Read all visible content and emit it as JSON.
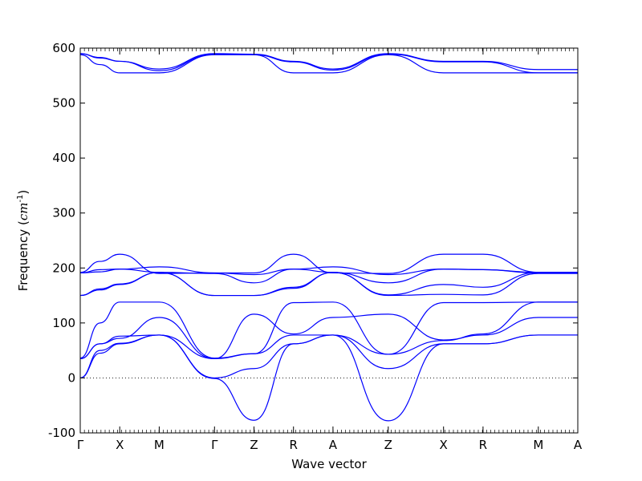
{
  "chart_data": {
    "type": "line",
    "xlabel": "Wave vector",
    "ylabel": "Frequency ($cm^{-1}$)",
    "ylim": [
      -100,
      600
    ],
    "yticks": [
      -100,
      0,
      100,
      200,
      300,
      400,
      500,
      600
    ],
    "grid": false,
    "legend": "none",
    "line_color": "#0000ff",
    "zero_line": {
      "y": 0,
      "style": "dotted",
      "color": "#000000"
    },
    "kpoints": [
      {
        "label": "Γ",
        "x": 0
      },
      {
        "label": "X",
        "x": 1
      },
      {
        "label": "M",
        "x": 2
      },
      {
        "label": "Γ",
        "x": 3.4
      },
      {
        "label": "Z",
        "x": 4.4
      },
      {
        "label": "R",
        "x": 5.4
      },
      {
        "label": "A",
        "x": 6.4
      },
      {
        "label": "Z",
        "x": 7.8
      },
      {
        "label": "X",
        "x": 9.2
      },
      {
        "label": "R",
        "x": 10.2
      },
      {
        "label": "M",
        "x": 11.6
      },
      {
        "label": "A",
        "x": 12.6
      }
    ],
    "series": [
      {
        "x": [
          0,
          0.5,
          1,
          2,
          3.4,
          4.4,
          5.4,
          6.4,
          7.8,
          9.2,
          10.2,
          11.6,
          12.6
        ],
        "y": [
          0,
          45,
          62,
          78,
          0,
          17,
          62,
          78,
          17,
          62,
          62,
          78,
          78
        ]
      },
      {
        "x": [
          0,
          0.5,
          1,
          2,
          3.4,
          4.4,
          5.4,
          6.4,
          7.8,
          9.2,
          10.2,
          11.6,
          12.6
        ],
        "y": [
          0,
          50,
          63,
          78,
          -1,
          -77,
          62,
          78,
          -78,
          62,
          62,
          78,
          78
        ]
      },
      {
        "x": [
          0,
          0.5,
          1,
          2,
          3.4,
          4.4,
          5.4,
          6.4,
          7.8,
          9.2,
          10.2,
          11.6,
          12.6
        ],
        "y": [
          35,
          62,
          76,
          78,
          35,
          44,
          78,
          78,
          43,
          68,
          80,
          138,
          138
        ]
      },
      {
        "x": [
          0,
          0.5,
          1,
          2,
          3.4,
          4.4,
          5.4,
          6.4,
          7.8,
          9.2,
          10.2,
          11.6,
          12.6
        ],
        "y": [
          35,
          62,
          72,
          110,
          35,
          116,
          80,
          110,
          116,
          69,
          78,
          110,
          110
        ]
      },
      {
        "x": [
          0,
          0.5,
          1,
          2,
          3.4,
          4.4,
          5.4,
          6.4,
          7.8,
          9.2,
          10.2,
          11.6,
          12.6
        ],
        "y": [
          36,
          100,
          138,
          138,
          36,
          44,
          137,
          138,
          43,
          137,
          137,
          138,
          138
        ]
      },
      {
        "x": [
          0,
          0.5,
          1,
          2,
          3.4,
          4.4,
          5.4,
          6.4,
          7.8,
          9.2,
          10.2,
          11.6,
          12.6
        ],
        "y": [
          150,
          160,
          170,
          192,
          150,
          150,
          163,
          192,
          150,
          152,
          151,
          190,
          190
        ]
      },
      {
        "x": [
          0,
          0.5,
          1,
          2,
          3.4,
          4.4,
          5.4,
          6.4,
          7.8,
          9.2,
          10.2,
          11.6,
          12.6
        ],
        "y": [
          150,
          162,
          171,
          192,
          150,
          150,
          165,
          192,
          151,
          170,
          165,
          192,
          192
        ]
      },
      {
        "x": [
          0,
          0.5,
          1,
          2,
          3.4,
          4.4,
          5.4,
          6.4,
          7.8,
          9.2,
          10.2,
          11.6,
          12.6
        ],
        "y": [
          191,
          193,
          198,
          192,
          190,
          173,
          198,
          192,
          173,
          198,
          197,
          191,
          191
        ]
      },
      {
        "x": [
          0,
          0.5,
          1,
          2,
          3.4,
          4.4,
          5.4,
          6.4,
          7.8,
          9.2,
          10.2,
          11.6,
          12.6
        ],
        "y": [
          191,
          197,
          198,
          202,
          191,
          188,
          198,
          202,
          188,
          198,
          197,
          192,
          192
        ]
      },
      {
        "x": [
          0,
          0.5,
          1,
          2,
          3.4,
          4.4,
          5.4,
          6.4,
          7.8,
          9.2,
          10.2,
          11.6,
          12.6
        ],
        "y": [
          192,
          212,
          225,
          190,
          191,
          191,
          225,
          191,
          190,
          225,
          225,
          192,
          192
        ]
      },
      {
        "x": [
          0,
          0.5,
          1,
          2,
          3.4,
          4.4,
          5.4,
          6.4,
          7.8,
          9.2,
          10.2,
          11.6,
          12.6
        ],
        "y": [
          588,
          570,
          555,
          555,
          588,
          588,
          555,
          555,
          588,
          555,
          555,
          555,
          555
        ]
      },
      {
        "x": [
          0,
          0.5,
          1,
          2,
          3.4,
          4.4,
          5.4,
          6.4,
          7.8,
          9.2,
          10.2,
          11.6,
          12.6
        ],
        "y": [
          590,
          582,
          576,
          559,
          589,
          588,
          575,
          560,
          589,
          575,
          575,
          555,
          555
        ]
      },
      {
        "x": [
          0,
          0.5,
          1,
          2,
          3.4,
          4.4,
          5.4,
          6.4,
          7.8,
          9.2,
          10.2,
          11.6,
          12.6
        ],
        "y": [
          590,
          583,
          576,
          562,
          590,
          589,
          576,
          562,
          590,
          576,
          576,
          561,
          561
        ]
      }
    ]
  }
}
